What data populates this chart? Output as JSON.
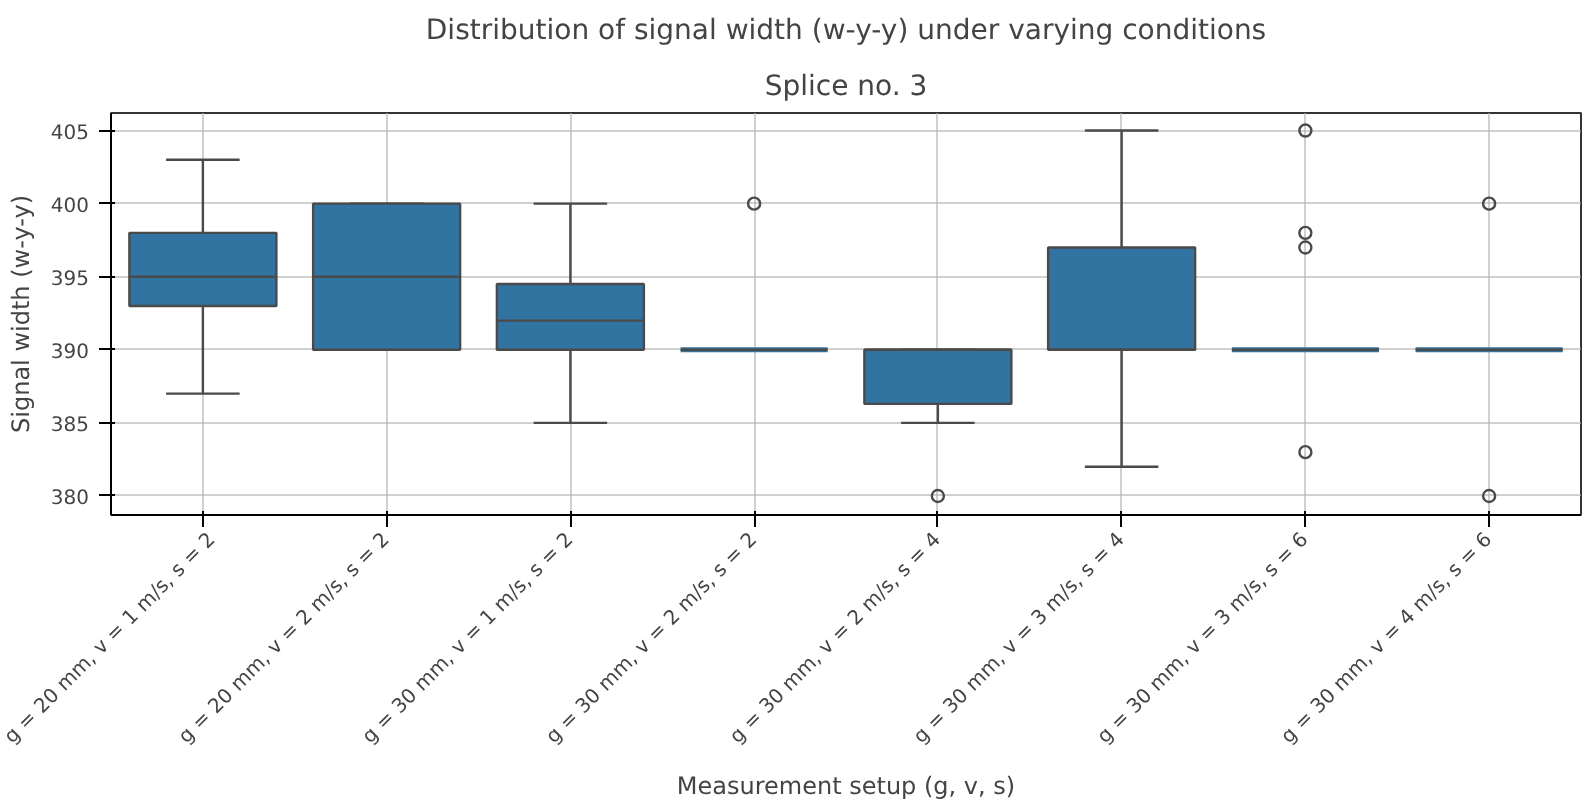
{
  "chart_data": {
    "type": "box",
    "title": "Distribution of signal width (w-y-y) under varying conditions",
    "subtitle": "Splice no. 3",
    "xlabel": "Measurement setup (g, v, s)",
    "ylabel": "Signal width (w-y-y)",
    "categories": [
      "g = 20 mm, v = 1 m/s, s = 2",
      "g = 20 mm, v = 2 m/s, s = 2",
      "g = 30 mm, v = 1 m/s, s = 2",
      "g = 30 mm, v = 2 m/s, s = 2",
      "g = 30 mm, v = 2 m/s, s = 4",
      "g = 30 mm, v = 3 m/s, s = 4",
      "g = 30 mm, v = 3 m/s, s = 6",
      "g = 30 mm, v = 4 m/s, s = 6"
    ],
    "color": "#3274a1",
    "boxes": [
      {
        "low": 387,
        "q1": 393,
        "median": 395,
        "q3": 398,
        "high": 403
      },
      {
        "low": 390,
        "q1": 390,
        "median": 395,
        "q3": 400,
        "high": 400
      },
      {
        "low": 385,
        "q1": 390,
        "median": 392,
        "q3": 394.5,
        "high": 400
      },
      {
        "low": 390,
        "q1": 390,
        "median": 390,
        "q3": 390,
        "high": 390,
        "outliers": [
          400
        ]
      },
      {
        "low": 385,
        "q1": 386.3,
        "median": 390,
        "q3": 390,
        "high": 390,
        "outliers": [
          380
        ]
      },
      {
        "low": 382,
        "q1": 390,
        "median": 390,
        "q3": 397,
        "high": 405
      },
      {
        "low": 390,
        "q1": 390,
        "median": 390,
        "q3": 390,
        "high": 390,
        "outliers": [
          405,
          398,
          397,
          383
        ]
      },
      {
        "low": 390,
        "q1": 390,
        "median": 390,
        "q3": 390,
        "high": 390,
        "outliers": [
          400,
          380
        ]
      }
    ],
    "ylim": [
      378.7,
      406.2
    ],
    "yticks": [
      380,
      385,
      390,
      395,
      400,
      405
    ],
    "grid": true
  }
}
